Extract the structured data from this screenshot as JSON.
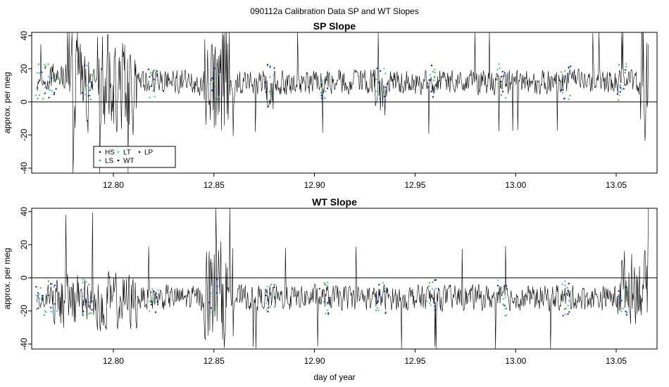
{
  "figure": {
    "title": "090112a   Calibration Data SP and WT Slopes",
    "xlabel": "day of year"
  },
  "legend": {
    "entries": [
      {
        "label": "HS",
        "color": "#1a1a1a"
      },
      {
        "label": "LT",
        "color": "#29c9e0"
      },
      {
        "label": "LP",
        "color": "#1a1a1a"
      },
      {
        "label": "LS",
        "color": "#22c022"
      },
      {
        "label": "WT",
        "color": "#000000"
      }
    ]
  },
  "colors": {
    "series_main": "#000000",
    "blue_points": "#0000dd",
    "green_points": "#22c022",
    "cyan_points": "#29c9e0"
  },
  "chart_data": [
    {
      "type": "line",
      "title": "SP Slope",
      "xlabel": "",
      "ylabel": "approx. per meg",
      "xlim": [
        12.7594,
        13.0703
      ],
      "ylim": [
        -43,
        42
      ],
      "xticks": [
        "12.80",
        "12.85",
        "12.90",
        "12.95",
        "13.00",
        "13.05"
      ],
      "xtick_values": [
        12.8,
        12.85,
        12.9,
        12.95,
        13.0,
        13.05
      ],
      "yticks": [
        "-40",
        "-20",
        "0",
        "20",
        "40"
      ],
      "ytick_values": [
        -40,
        -20,
        0,
        20,
        40
      ],
      "hline": 0,
      "legend_position": "bottom-left",
      "x_start": 12.762,
      "x_end": 13.066,
      "typical_mean": 12,
      "typical_spread": 7,
      "segments": [
        {
          "x": [
            12.762,
            12.768
          ],
          "mean": 10,
          "spread": 4
        },
        {
          "x": [
            12.768,
            12.778
          ],
          "mean": 16,
          "spread": 8
        },
        {
          "x": [
            12.778,
            12.788
          ],
          "mean": 10,
          "spread": 25
        },
        {
          "x": [
            12.792,
            12.812
          ],
          "mean": 12,
          "spread": 28
        },
        {
          "x": [
            12.845,
            12.858
          ],
          "mean": 10,
          "spread": 35
        },
        {
          "x": [
            12.876,
            12.88
          ],
          "mean": 5,
          "spread": 15
        },
        {
          "x": [
            12.93,
            12.936
          ],
          "mean": 5,
          "spread": 15
        },
        {
          "x": [
            13.062,
            13.066
          ],
          "mean": 5,
          "spread": 40
        }
      ],
      "colored_clusters": [
        12.764,
        12.77,
        12.787,
        12.82,
        12.85,
        12.878,
        12.905,
        12.933,
        12.958,
        12.993,
        13.025,
        13.053
      ]
    },
    {
      "type": "line",
      "title": "WT Slope",
      "xlabel": "day of year",
      "ylabel": "approx. per meg",
      "xlim": [
        12.7594,
        13.0703
      ],
      "ylim": [
        -43,
        42
      ],
      "xticks": [
        "12.80",
        "12.85",
        "12.90",
        "12.95",
        "13.00",
        "13.05"
      ],
      "xtick_values": [
        12.8,
        12.85,
        12.9,
        12.95,
        13.0,
        13.05
      ],
      "yticks": [
        "-40",
        "-20",
        "0",
        "20",
        "40"
      ],
      "ytick_values": [
        -40,
        -20,
        0,
        20,
        40
      ],
      "hline": 0,
      "x_start": 12.762,
      "x_end": 13.066,
      "typical_mean": -12,
      "typical_spread": 7,
      "segments": [
        {
          "x": [
            12.762,
            12.766
          ],
          "mean": -13,
          "spread": 4
        },
        {
          "x": [
            12.77,
            12.812
          ],
          "mean": -14,
          "spread": 16
        },
        {
          "x": [
            12.845,
            12.858
          ],
          "mean": -10,
          "spread": 30
        },
        {
          "x": [
            13.05,
            13.066
          ],
          "mean": -5,
          "spread": 20
        }
      ],
      "colored_clusters": [
        12.764,
        12.77,
        12.787,
        12.82,
        12.85,
        12.878,
        12.905,
        12.933,
        12.958,
        12.993,
        13.025,
        13.053
      ]
    }
  ]
}
